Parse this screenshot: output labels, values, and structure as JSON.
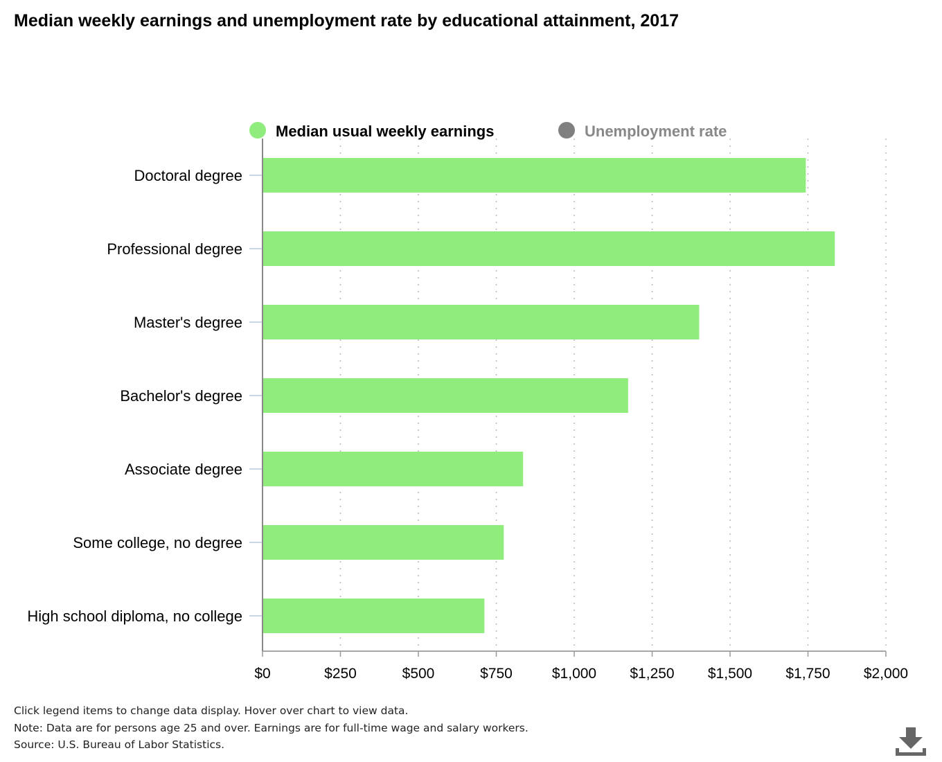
{
  "chart_data": {
    "type": "bar",
    "orientation": "horizontal",
    "title": "Median weekly earnings and unemployment rate by educational attainment, 2017",
    "categories": [
      "Doctoral degree",
      "Professional degree",
      "Master's degree",
      "Bachelor's degree",
      "Associate degree",
      "Some college, no degree",
      "High school diploma, no college"
    ],
    "series": [
      {
        "name": "Median usual weekly earnings",
        "values": [
          1743,
          1836,
          1401,
          1173,
          836,
          774,
          712
        ],
        "color": "#90ec7d",
        "visible": true
      },
      {
        "name": "Unemployment rate",
        "color": "#808080",
        "visible": false
      }
    ],
    "xlim": [
      0,
      2000
    ],
    "xticks": [
      0,
      250,
      500,
      750,
      1000,
      1250,
      1500,
      1750,
      2000
    ],
    "xtick_labels": [
      "$0",
      "$250",
      "$500",
      "$750",
      "$1,000",
      "$1,250",
      "$1,500",
      "$1,750",
      "$2,000"
    ],
    "grid": "vertical dotted",
    "legend": "top"
  },
  "footer": {
    "instructions": "Click legend items to change data display. Hover over chart to view data.",
    "note": "Note: Data are for persons age 25 and over. Earnings are for full-time wage and salary workers.",
    "source": "Source: U.S. Bureau of Labor Statistics."
  },
  "icons": {
    "download": "download-icon"
  }
}
